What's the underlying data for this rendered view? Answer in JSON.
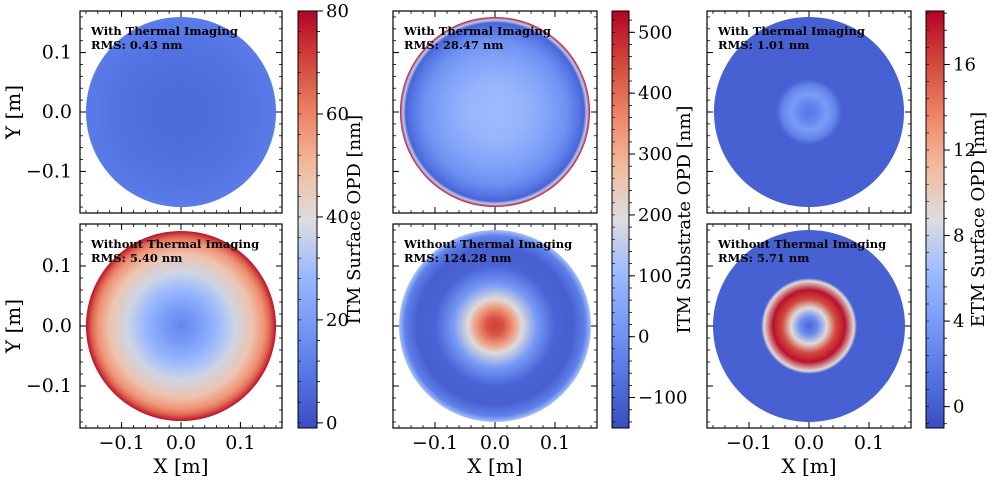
{
  "chart_data": [
    {
      "type": "heatmap",
      "quantity": "ITM Surface OPD",
      "xlabel": "X [m]",
      "ylabel": "Y [m]",
      "xlim": [
        -0.17,
        0.17
      ],
      "ylim": [
        -0.17,
        0.17
      ],
      "xticks": [
        -0.1,
        0.0,
        0.1
      ],
      "xtick_labels": [
        "−0.1",
        "0.0",
        "0.1"
      ],
      "yticks": [
        0.1,
        0.0,
        -0.1
      ],
      "ytick_labels": [
        "0.1",
        "0.0",
        "−0.1"
      ],
      "colormap": "coolwarm",
      "colorbar": {
        "label": "ITM Surface OPD [nm]",
        "range": [
          -1,
          80
        ],
        "ticks": [
          0,
          20,
          40,
          60,
          80
        ],
        "tick_labels": [
          "0",
          "20",
          "40",
          "60",
          "80"
        ]
      },
      "panels": [
        {
          "case": "with",
          "title": "With Thermal Imaging",
          "rms_text": "RMS: 0.43 nm",
          "aperture_radius": 0.16,
          "profile": {
            "r": [
              0,
              0.04,
              0.08,
              0.12,
              0.14,
              0.16
            ],
            "value": [
              7,
              7,
              8,
              9,
              10,
              11
            ]
          }
        },
        {
          "case": "without",
          "title": "Without Thermal Imaging",
          "rms_text": "RMS: 5.40 nm",
          "aperture_radius": 0.16,
          "profile": {
            "r": [
              0,
              0.03,
              0.06,
              0.09,
              0.12,
              0.14,
              0.15,
              0.16
            ],
            "value": [
              14,
              20,
              28,
              37,
              47,
              57,
              65,
              78
            ]
          }
        }
      ]
    },
    {
      "type": "heatmap",
      "quantity": "ITM Substrate OPD",
      "xlabel": "X [m]",
      "ylabel": "",
      "xlim": [
        -0.17,
        0.17
      ],
      "ylim": [
        -0.17,
        0.17
      ],
      "xticks": [
        -0.1,
        0.0,
        0.1
      ],
      "xtick_labels": [
        "−0.1",
        "0.0",
        "0.1"
      ],
      "colormap": "coolwarm",
      "colorbar": {
        "label": "ITM Substrate OPD [nm]",
        "range": [
          -150,
          535
        ],
        "ticks": [
          -100,
          0,
          100,
          200,
          300,
          400,
          500
        ],
        "tick_labels": [
          "−100",
          "0",
          "100",
          "200",
          "300",
          "400",
          "500"
        ]
      },
      "panels": [
        {
          "case": "with",
          "title": "With Thermal Imaging",
          "rms_text": "RMS: 28.47 nm",
          "aperture_radius": 0.16,
          "profile": {
            "r": [
              0,
              0.05,
              0.09,
              0.12,
              0.14,
              0.15,
              0.155,
              0.16
            ],
            "value": [
              110,
              90,
              45,
              0,
              -60,
              -100,
              150,
              520
            ]
          }
        },
        {
          "case": "without",
          "title": "Without Thermal Imaging",
          "rms_text": "RMS: 124.28 nm",
          "aperture_radius": 0.16,
          "profile": {
            "r": [
              0,
              0.015,
              0.03,
              0.045,
              0.07,
              0.1,
              0.13,
              0.15,
              0.16
            ],
            "value": [
              460,
              430,
              340,
              200,
              20,
              -100,
              -110,
              -40,
              120
            ]
          }
        }
      ]
    },
    {
      "type": "heatmap",
      "quantity": "ETM Surface OPD",
      "xlabel": "X [m]",
      "ylabel": "",
      "xlim": [
        -0.17,
        0.17
      ],
      "ylim": [
        -0.17,
        0.17
      ],
      "xticks": [
        -0.1,
        0.0,
        0.1
      ],
      "xtick_labels": [
        "−0.1",
        "0.0",
        "0.1"
      ],
      "colormap": "coolwarm",
      "colorbar": {
        "label": "ETM Surface OPD [nm]",
        "range": [
          -1,
          18.5
        ],
        "ticks": [
          0,
          4,
          8,
          12,
          16
        ],
        "tick_labels": [
          "0",
          "4",
          "8",
          "12",
          "16"
        ]
      },
      "panels": [
        {
          "case": "with",
          "title": "With Thermal Imaging",
          "rms_text": "RMS: 1.01 nm",
          "aperture_radius": 0.16,
          "profile": {
            "r": [
              0,
              0.015,
              0.03,
              0.045,
              0.055,
              0.16
            ],
            "value": [
              1.5,
              2.5,
              4,
              2.5,
              0.2,
              0.2
            ]
          }
        },
        {
          "case": "without",
          "title": "Without Thermal Imaging",
          "rms_text": "RMS: 5.71 nm",
          "aperture_radius": 0.16,
          "profile": {
            "r": [
              0,
              0.015,
              0.03,
              0.045,
              0.06,
              0.075,
              0.08,
              0.16
            ],
            "value": [
              0.5,
              3,
              9,
              16,
              18,
              9,
              0.2,
              0.2
            ]
          }
        }
      ]
    }
  ]
}
